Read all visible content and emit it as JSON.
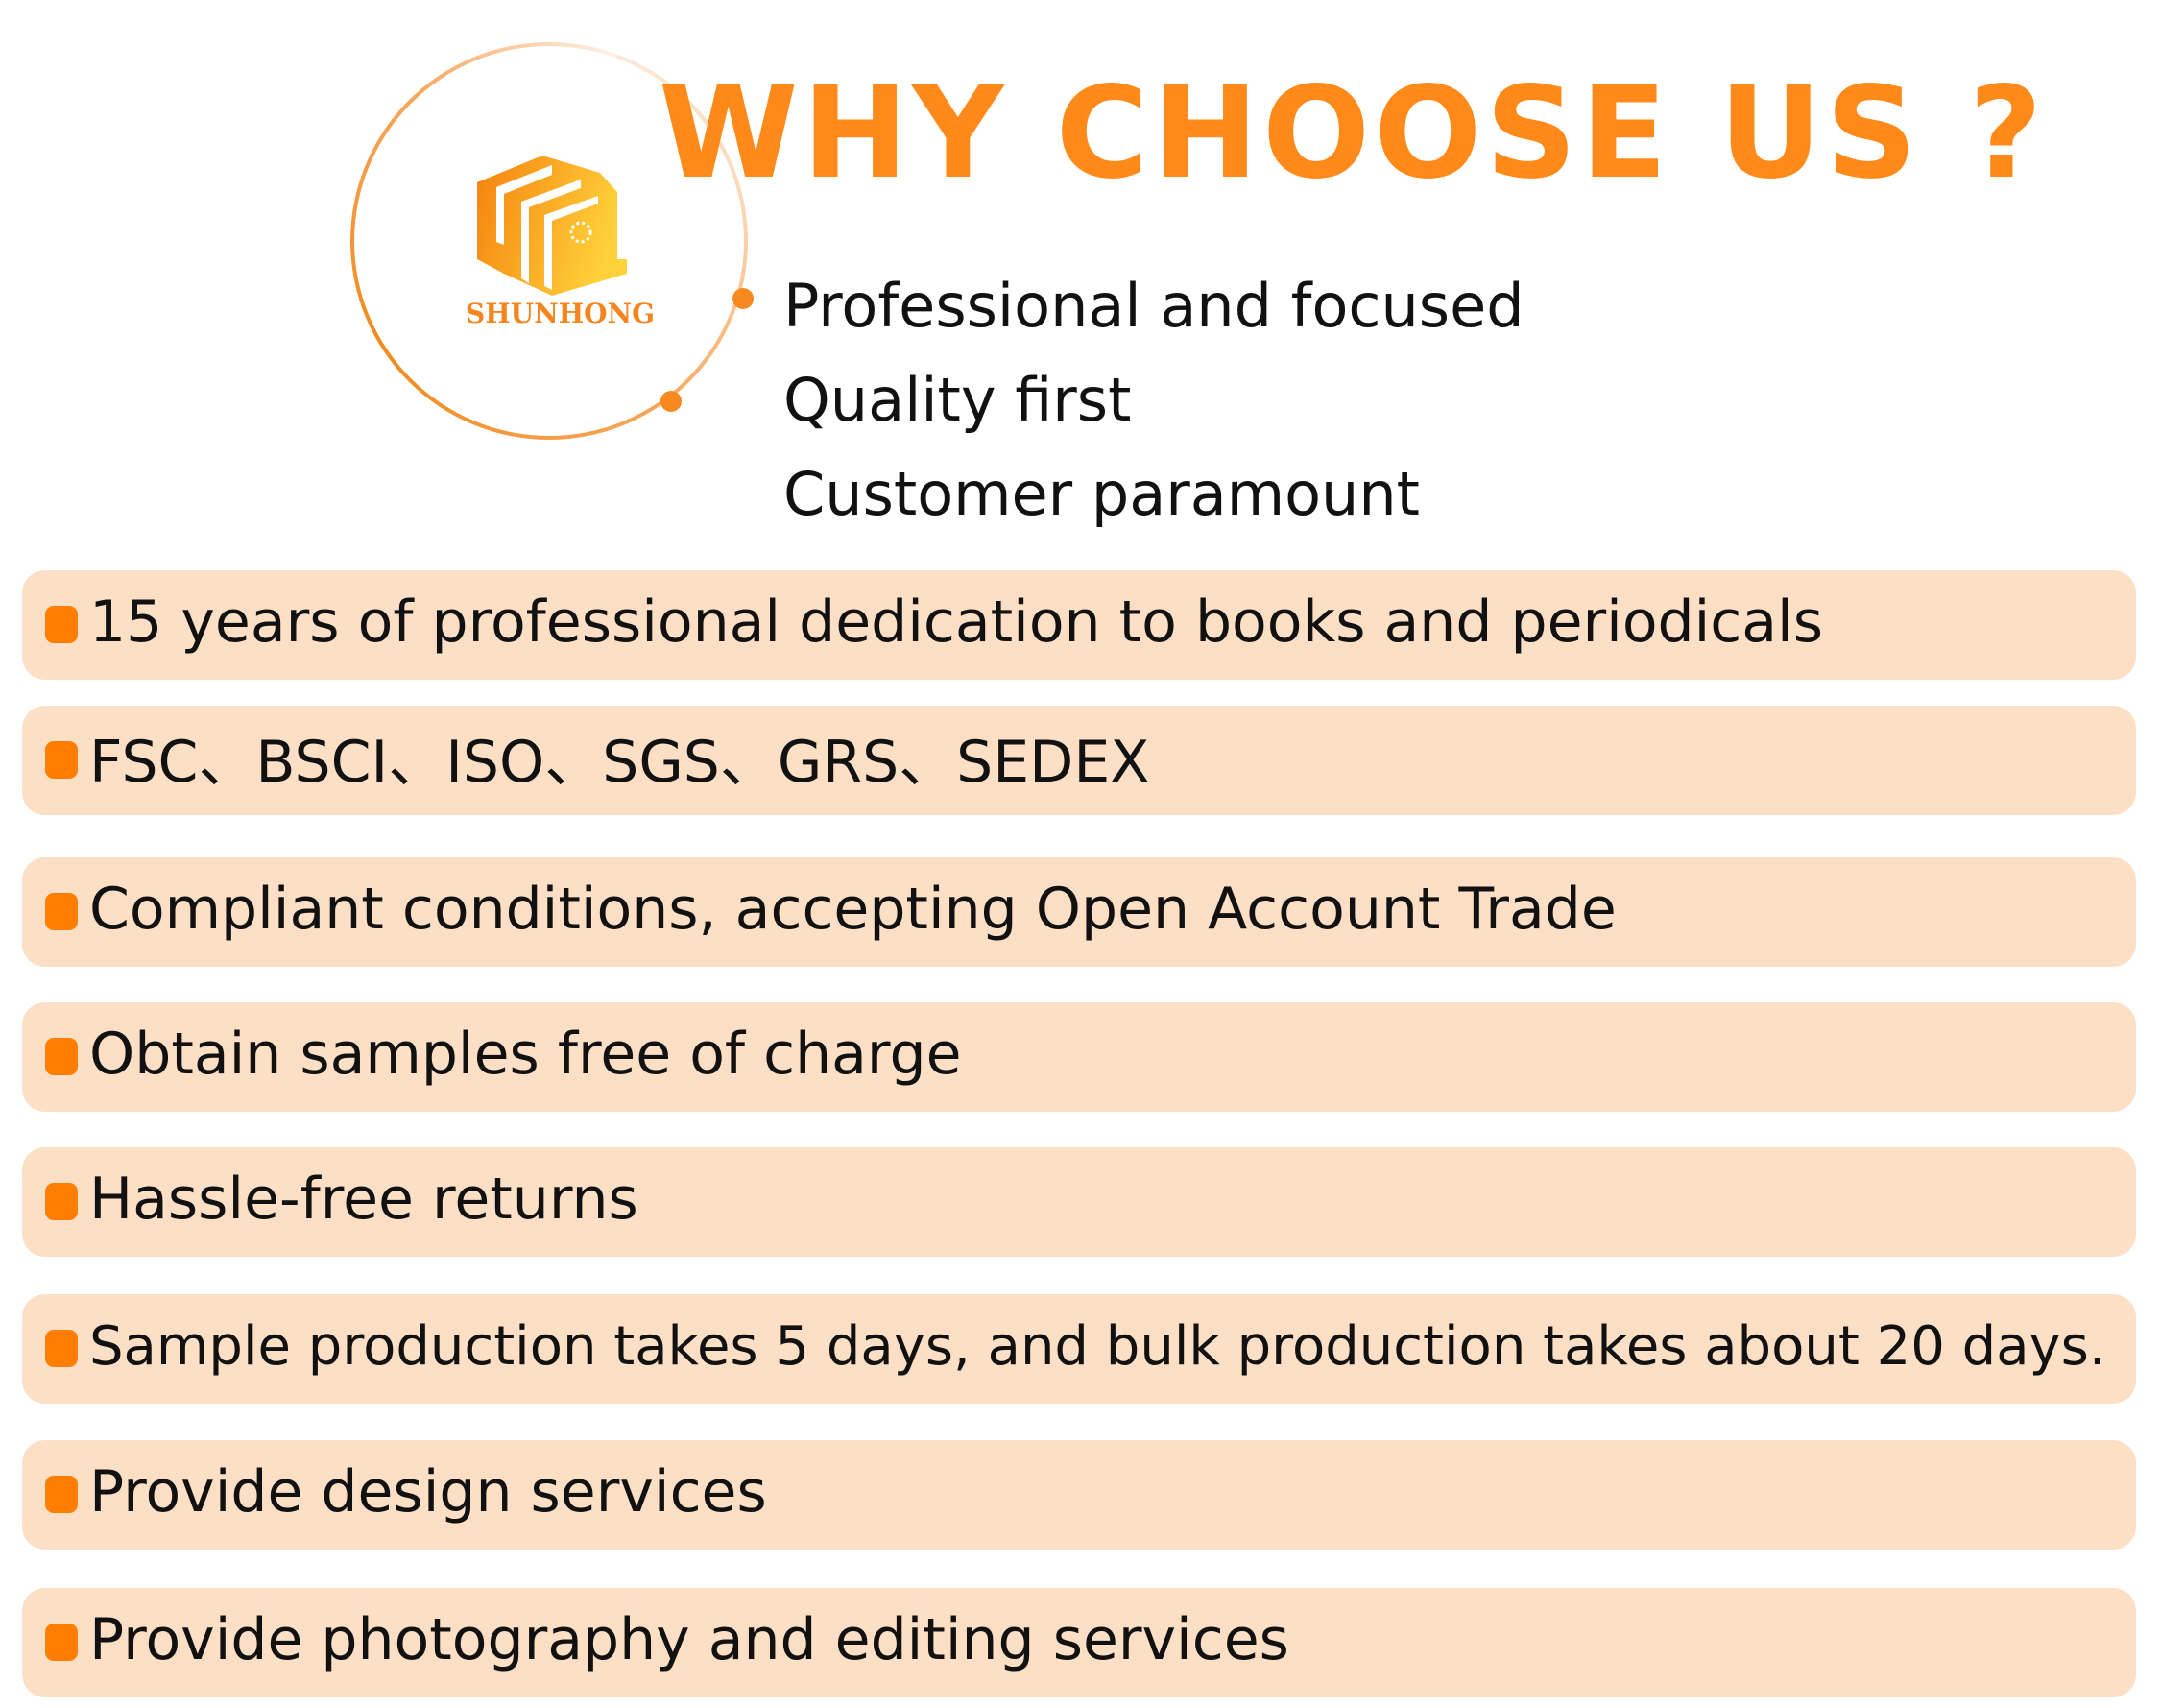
{
  "logo": {
    "brand_name": "SHUNHONG"
  },
  "header": {
    "title": "WHY CHOOSE US ?"
  },
  "mottos": [
    "Professional and focused",
    "Quality first",
    "Customer paramount"
  ],
  "features": [
    "15 years of professional dedication to books and periodicals",
    "FSC、BSCI、ISO、SGS、GRS、SEDEX",
    "Compliant conditions, accepting Open Account Trade",
    "Obtain samples free of charge",
    "Hassle-free returns",
    "Sample production takes 5 days, and bulk production takes about 20 days.",
    "Provide design services",
    "Provide photography and editing services"
  ],
  "colors": {
    "accent": "#ff8a1a",
    "row_background": "#fddfc5",
    "bullet": "#ff7d00"
  }
}
